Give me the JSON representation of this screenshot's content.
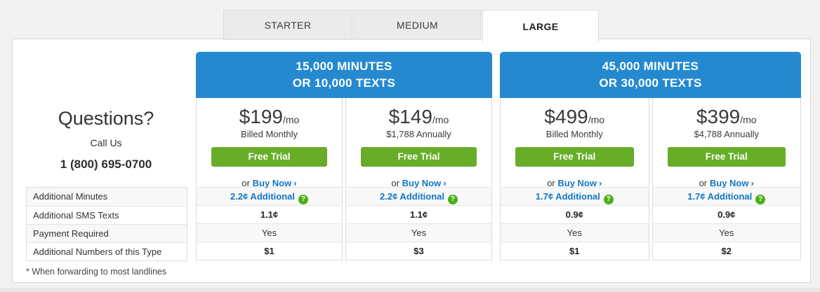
{
  "colors": {
    "brand-blue": "#2589d0",
    "green": "#67ad28",
    "link-blue": "#1176c8",
    "help-green": "#4cb018"
  },
  "tabs": [
    {
      "label": "STARTER",
      "active": false
    },
    {
      "label": "MEDIUM",
      "active": false
    },
    {
      "label": "LARGE",
      "active": true
    }
  ],
  "contact": {
    "title": "Questions?",
    "subtitle": "Call Us",
    "phone": "1 (800) 695-0700"
  },
  "row_labels": [
    "Additional Minutes",
    "Additional SMS Texts",
    "Payment Required",
    "Additional Numbers of this Type"
  ],
  "footnote": "* When forwarding to most landlines",
  "groups": [
    {
      "header_line1": "15,000 MINUTES",
      "header_line2": "OR 10,000 TEXTS",
      "plans": [
        {
          "price": "$199",
          "per": "/mo",
          "billing": "Billed Monthly",
          "trial_label": "Free Trial",
          "or_text": "or",
          "buy_label": "Buy Now",
          "additional_minutes": "2.2¢ Additional",
          "sms_rate": "1.1¢",
          "payment_required": "Yes",
          "additional_number_price": "$1"
        },
        {
          "price": "$149",
          "per": "/mo",
          "billing": "$1,788 Annually",
          "trial_label": "Free Trial",
          "or_text": "or",
          "buy_label": "Buy Now",
          "additional_minutes": "2.2¢ Additional",
          "sms_rate": "1.1¢",
          "payment_required": "Yes",
          "additional_number_price": "$3"
        }
      ]
    },
    {
      "header_line1": "45,000 MINUTES",
      "header_line2": "OR 30,000 TEXTS",
      "plans": [
        {
          "price": "$499",
          "per": "/mo",
          "billing": "Billed Monthly",
          "trial_label": "Free Trial",
          "or_text": "or",
          "buy_label": "Buy Now",
          "additional_minutes": "1.7¢ Additional",
          "sms_rate": "0.9¢",
          "payment_required": "Yes",
          "additional_number_price": "$1"
        },
        {
          "price": "$399",
          "per": "/mo",
          "billing": "$4,788 Annually",
          "trial_label": "Free Trial",
          "or_text": "or",
          "buy_label": "Buy Now",
          "additional_minutes": "1.7¢ Additional",
          "sms_rate": "0.9¢",
          "payment_required": "Yes",
          "additional_number_price": "$2"
        }
      ]
    }
  ]
}
